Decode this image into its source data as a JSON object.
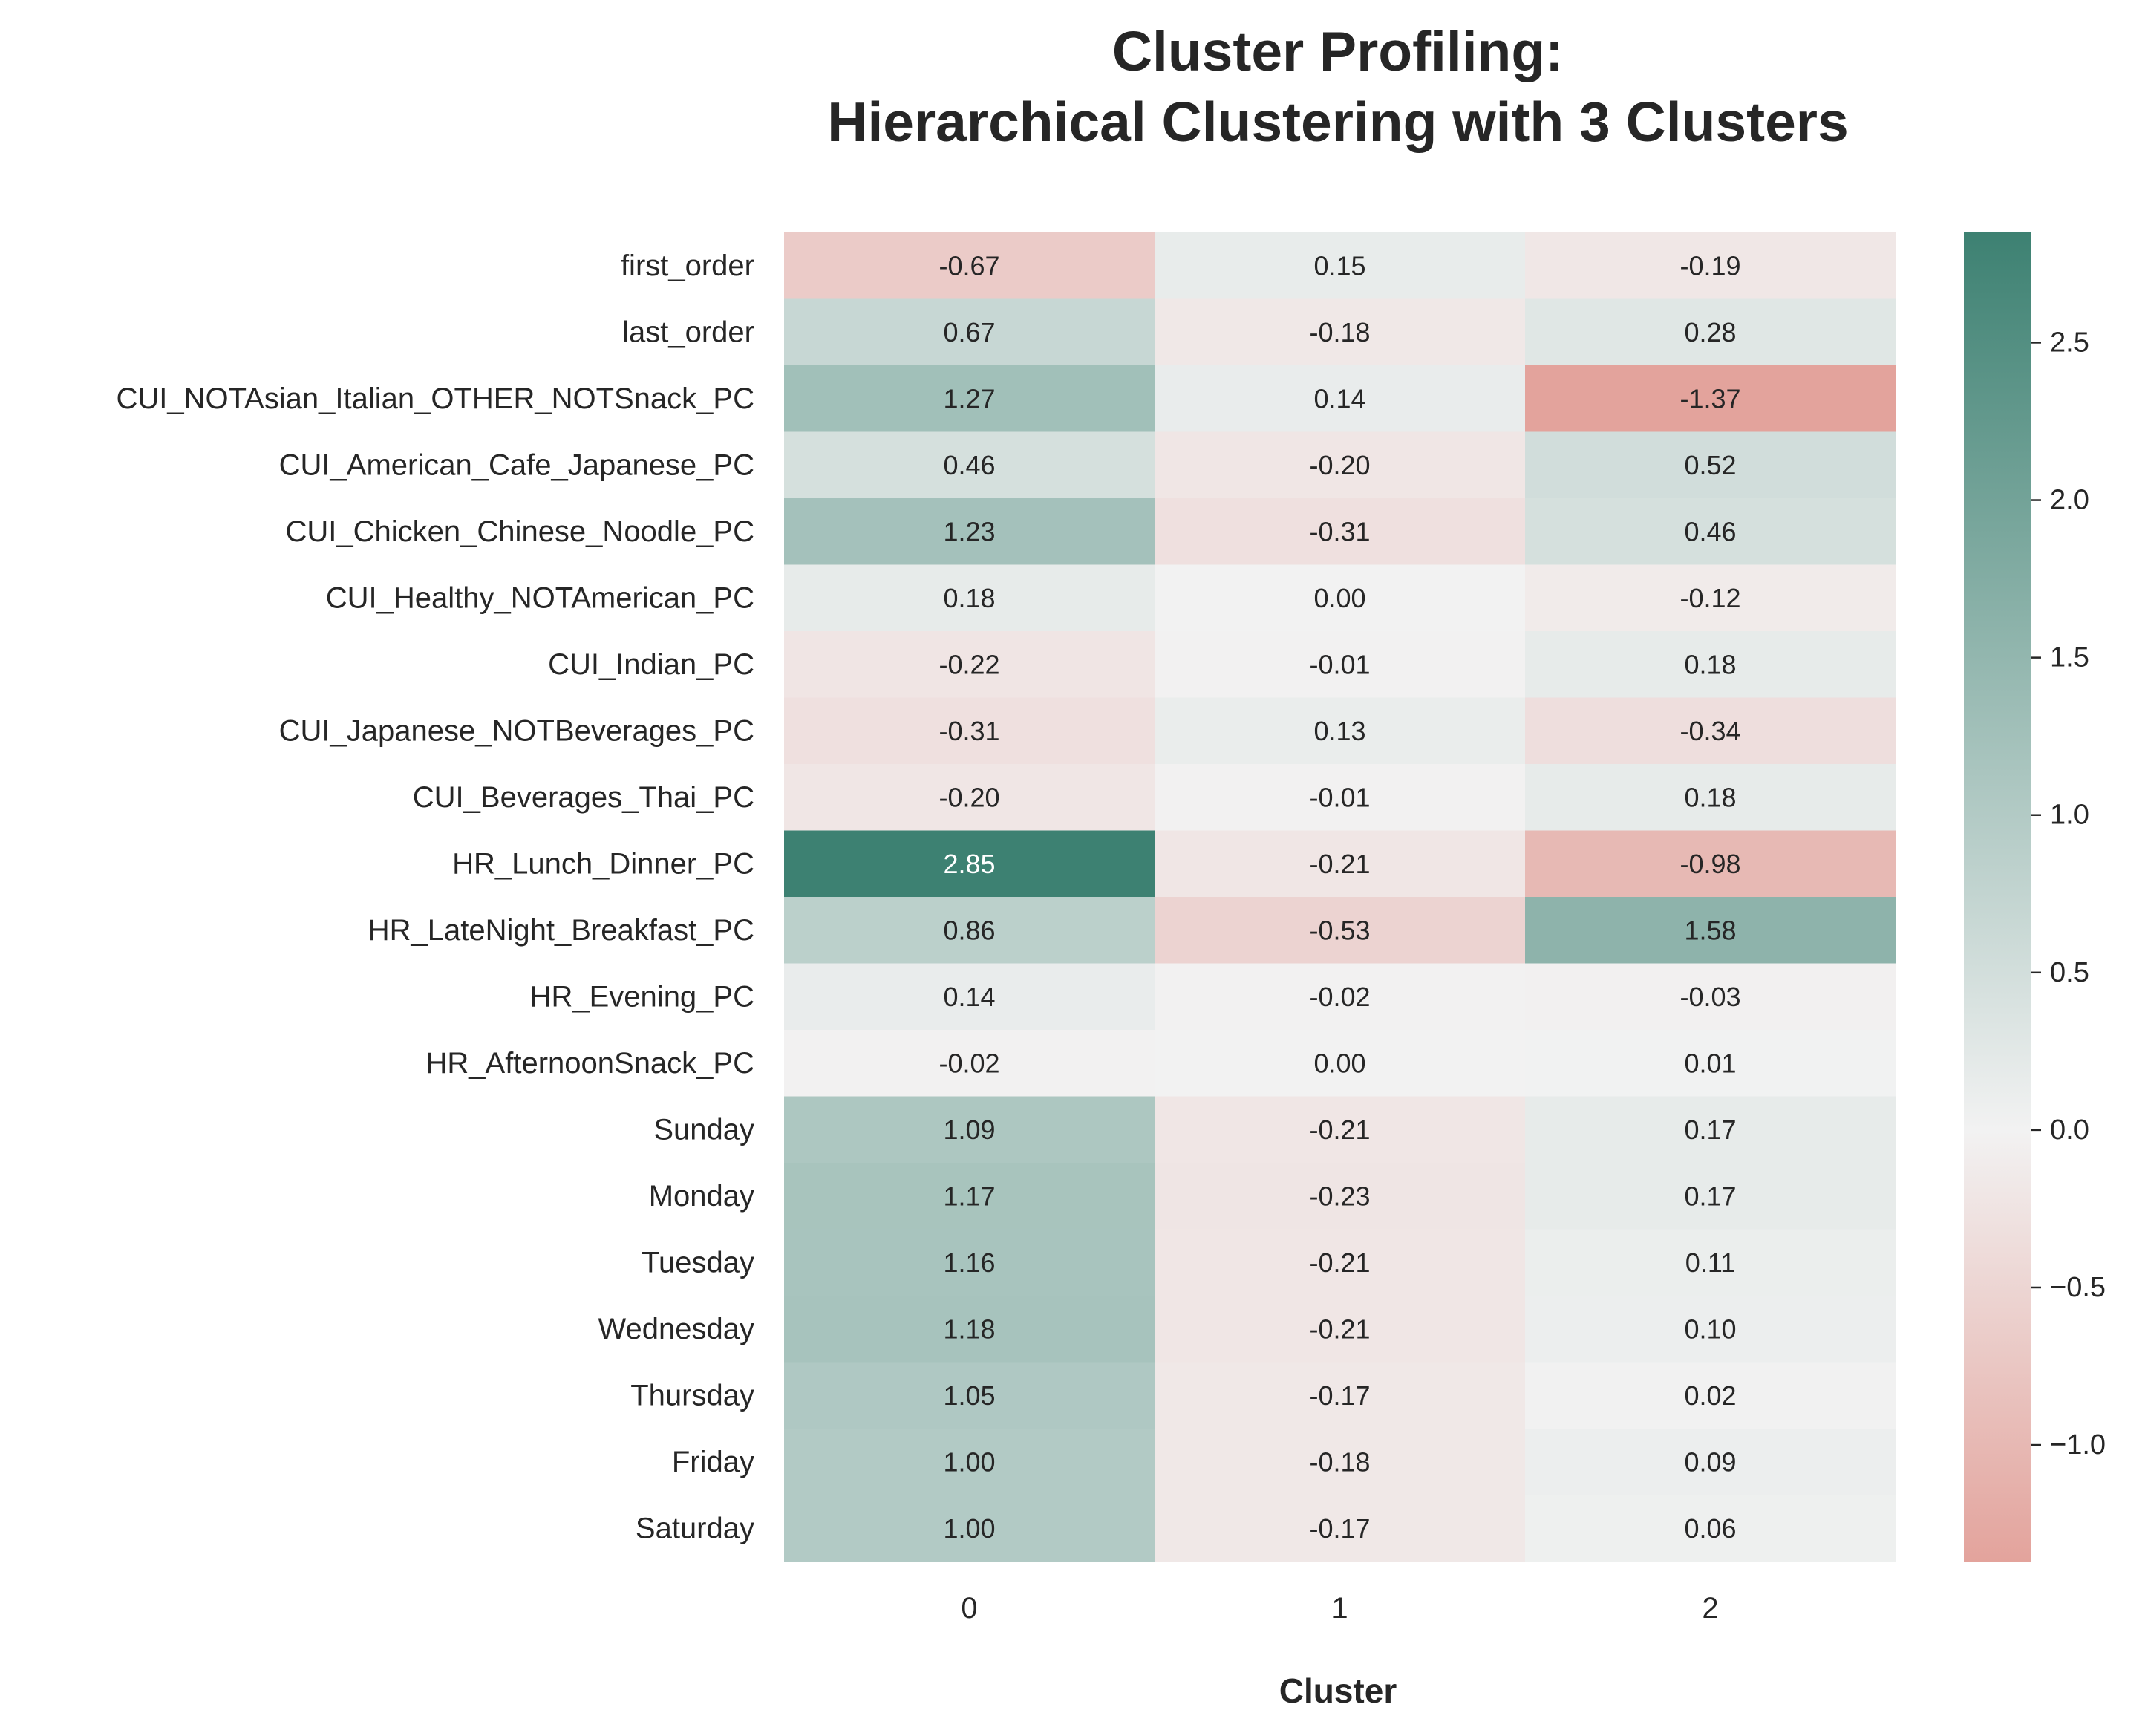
{
  "chart_data": {
    "type": "heatmap",
    "title_lines": [
      "Cluster Profiling:",
      "Hierarchical Clustering with 3 Clusters"
    ],
    "xlabel": "Cluster",
    "ylabel": "",
    "columns": [
      "0",
      "1",
      "2"
    ],
    "rows": [
      "first_order",
      "last_order",
      "CUI_NOTAsian_Italian_OTHER_NOTSnack_PC",
      "CUI_American_Cafe_Japanese_PC",
      "CUI_Chicken_Chinese_Noodle_PC",
      "CUI_Healthy_NOTAmerican_PC",
      "CUI_Indian_PC",
      "CUI_Japanese_NOTBeverages_PC",
      "CUI_Beverages_Thai_PC",
      "HR_Lunch_Dinner_PC",
      "HR_LateNight_Breakfast_PC",
      "HR_Evening_PC",
      "HR_AfternoonSnack_PC",
      "Sunday",
      "Monday",
      "Tuesday",
      "Wednesday",
      "Thursday",
      "Friday",
      "Saturday"
    ],
    "values": [
      [
        -0.67,
        0.15,
        -0.19
      ],
      [
        0.67,
        -0.18,
        0.28
      ],
      [
        1.27,
        0.14,
        -1.37
      ],
      [
        0.46,
        -0.2,
        0.52
      ],
      [
        1.23,
        -0.31,
        0.46
      ],
      [
        0.18,
        0.0,
        -0.12
      ],
      [
        -0.22,
        -0.01,
        0.18
      ],
      [
        -0.31,
        0.13,
        -0.34
      ],
      [
        -0.2,
        -0.01,
        0.18
      ],
      [
        2.85,
        -0.21,
        -0.98
      ],
      [
        0.86,
        -0.53,
        1.58
      ],
      [
        0.14,
        -0.02,
        -0.03
      ],
      [
        -0.02,
        0.0,
        0.01
      ],
      [
        1.09,
        -0.21,
        0.17
      ],
      [
        1.17,
        -0.23,
        0.17
      ],
      [
        1.16,
        -0.21,
        0.11
      ],
      [
        1.18,
        -0.21,
        0.1
      ],
      [
        1.05,
        -0.17,
        0.02
      ],
      [
        1.0,
        -0.18,
        0.09
      ],
      [
        1.0,
        -0.17,
        0.06
      ]
    ],
    "value_labels": [
      [
        "-0.67",
        "0.15",
        "-0.19"
      ],
      [
        "0.67",
        "-0.18",
        "0.28"
      ],
      [
        "1.27",
        "0.14",
        "-1.37"
      ],
      [
        "0.46",
        "-0.20",
        "0.52"
      ],
      [
        "1.23",
        "-0.31",
        "0.46"
      ],
      [
        "0.18",
        "0.00",
        "-0.12"
      ],
      [
        "-0.22",
        "-0.01",
        "0.18"
      ],
      [
        "-0.31",
        "0.13",
        "-0.34"
      ],
      [
        "-0.20",
        "-0.01",
        "0.18"
      ],
      [
        "2.85",
        "-0.21",
        "-0.98"
      ],
      [
        "0.86",
        "-0.53",
        "1.58"
      ],
      [
        "0.14",
        "-0.02",
        "-0.03"
      ],
      [
        "-0.02",
        "0.00",
        "0.01"
      ],
      [
        "1.09",
        "-0.21",
        "0.17"
      ],
      [
        "1.17",
        "-0.23",
        "0.17"
      ],
      [
        "1.16",
        "-0.21",
        "0.11"
      ],
      [
        "1.18",
        "-0.21",
        "0.10"
      ],
      [
        "1.05",
        "-0.17",
        "0.02"
      ],
      [
        "1.00",
        "-0.18",
        "0.09"
      ],
      [
        "1.00",
        "-0.17",
        "0.06"
      ]
    ],
    "colorbar": {
      "vmin": -1.37,
      "vmax": 2.85,
      "center": 0,
      "ticks": [
        -1.0,
        -0.5,
        0.0,
        0.5,
        1.0,
        1.5,
        2.0,
        2.5
      ],
      "tick_labels": [
        "−1.0",
        "−0.5",
        "0.0",
        "0.5",
        "1.0",
        "1.5",
        "2.0",
        "2.5"
      ]
    },
    "colors": {
      "negative": "#e3a39c",
      "center": "#f2f2f2",
      "positive": "#3d8172",
      "text_dark": "#262626",
      "text_light": "#ffffff"
    },
    "grid": false,
    "legend": "colorbar-right"
  }
}
